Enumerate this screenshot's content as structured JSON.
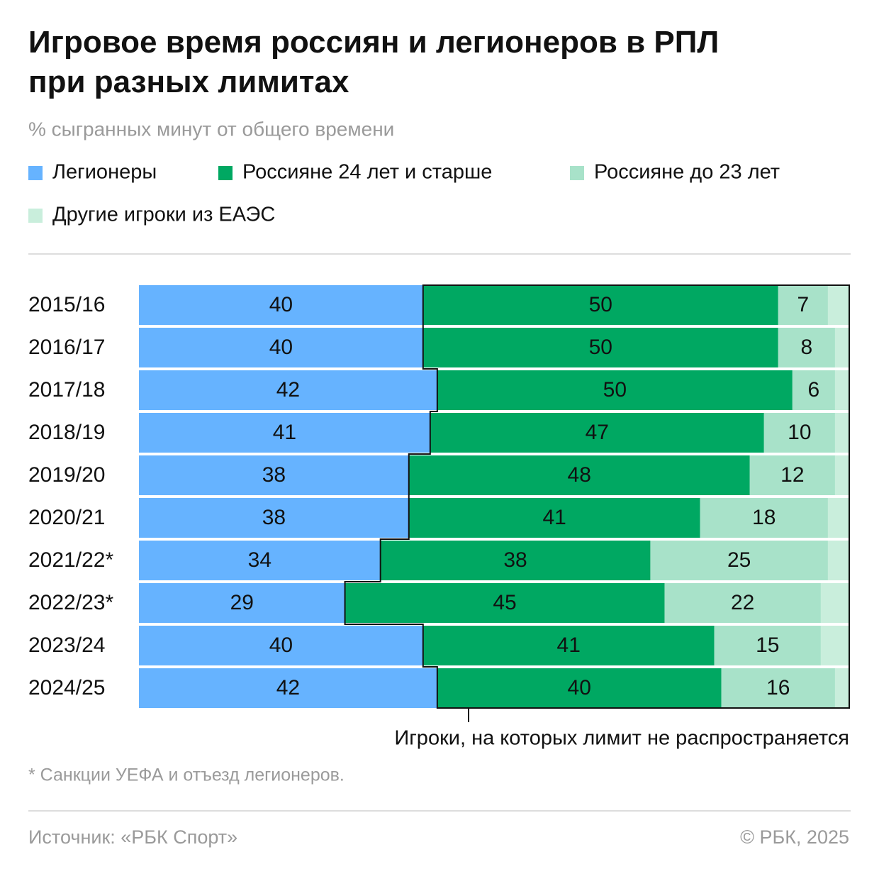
{
  "chart_data": {
    "type": "stacked-bar-horizontal",
    "title": "Игровое время россиян и легионеров в РПЛ при разных лимитах",
    "subtitle": "% сыгранных минут от общего времени",
    "categories": [
      "2015/16",
      "2016/17",
      "2017/18",
      "2018/19",
      "2019/20",
      "2020/21",
      "2021/22*",
      "2022/23*",
      "2023/24",
      "2024/25"
    ],
    "series": [
      {
        "name": "Легионеры",
        "color": "#66b3ff",
        "values": [
          40,
          40,
          42,
          41,
          38,
          38,
          34,
          29,
          40,
          42
        ]
      },
      {
        "name": "Россияне 24 лет и старше",
        "color": "#00a862",
        "values": [
          50,
          50,
          50,
          47,
          48,
          41,
          38,
          45,
          41,
          40
        ]
      },
      {
        "name": "Россияне до 23 лет",
        "color": "#a8e2c9",
        "values": [
          7,
          8,
          6,
          10,
          12,
          18,
          25,
          22,
          15,
          16
        ]
      },
      {
        "name": "Другие игроки из ЕАЭС",
        "color": "#c9eedc",
        "values": [
          3,
          2,
          2,
          2,
          2,
          3,
          3,
          4,
          4,
          2
        ]
      }
    ],
    "xlim": [
      0,
      100
    ],
    "annotation": "Игроки, на которых лимит не распространяется",
    "footnote": "* Санкции УЕФА и отъезд легионеров.",
    "source": "Источник: «РБК Спорт»",
    "copyright": "© РБК, 2025"
  }
}
